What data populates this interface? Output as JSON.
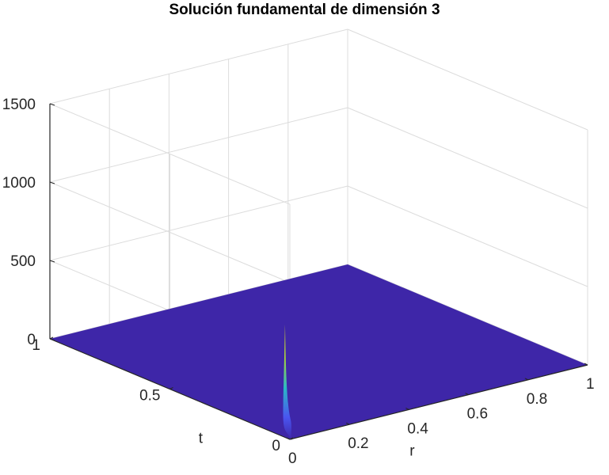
{
  "chart_data": {
    "type": "surface",
    "title": "Solución fundamental de dimensión 3",
    "xlabel": "r",
    "ylabel": "t",
    "zlabel": "",
    "xlim": [
      0,
      1
    ],
    "ylim": [
      0,
      1
    ],
    "zlim": [
      0,
      1500
    ],
    "x_ticks": [
      0,
      0.2,
      0.4,
      0.6,
      0.8,
      1
    ],
    "x_tick_labels": [
      "0",
      "0.2",
      "0.4",
      "0.6",
      "0.8",
      "1"
    ],
    "y_ticks": [
      0,
      0.5,
      1
    ],
    "y_tick_labels": [
      "0",
      "0.5",
      "1"
    ],
    "z_ticks": [
      0,
      500,
      1000,
      1500
    ],
    "z_tick_labels": [
      "0",
      "500",
      "1000",
      "1500"
    ],
    "grid": true,
    "colormap": "parula",
    "colors": {
      "low": "#3e26a8",
      "mid": "#2ab8c6",
      "high": "#f9fb15"
    },
    "peak": {
      "r": 0,
      "t": 0.02,
      "value": 720
    },
    "plateau_value": 0
  }
}
